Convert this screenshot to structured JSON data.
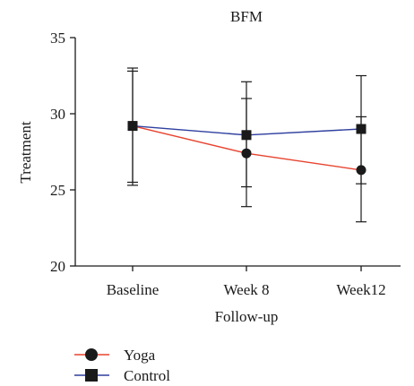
{
  "chart_data": {
    "type": "line",
    "title": "BFM",
    "xlabel": "Follow-up",
    "ylabel": "Treatment",
    "categories": [
      "Baseline",
      "Week 8",
      "Week12"
    ],
    "ylim": [
      20,
      35
    ],
    "yticks": [
      20,
      25,
      30,
      35
    ],
    "grid": false,
    "legend_position": "bottom-left",
    "series": [
      {
        "name": "Yoga",
        "color": "#e8432f",
        "marker": "circle",
        "values": [
          29.2,
          27.4,
          26.3
        ],
        "error_low": [
          25.5,
          25.2,
          22.9
        ],
        "error_high": [
          33.0,
          31.0,
          29.8
        ]
      },
      {
        "name": "Control",
        "color": "#2f3f9e",
        "marker": "square",
        "values": [
          29.2,
          28.6,
          29.0
        ],
        "error_low": [
          25.3,
          23.9,
          25.4
        ],
        "error_high": [
          32.8,
          32.1,
          32.5
        ]
      }
    ]
  }
}
